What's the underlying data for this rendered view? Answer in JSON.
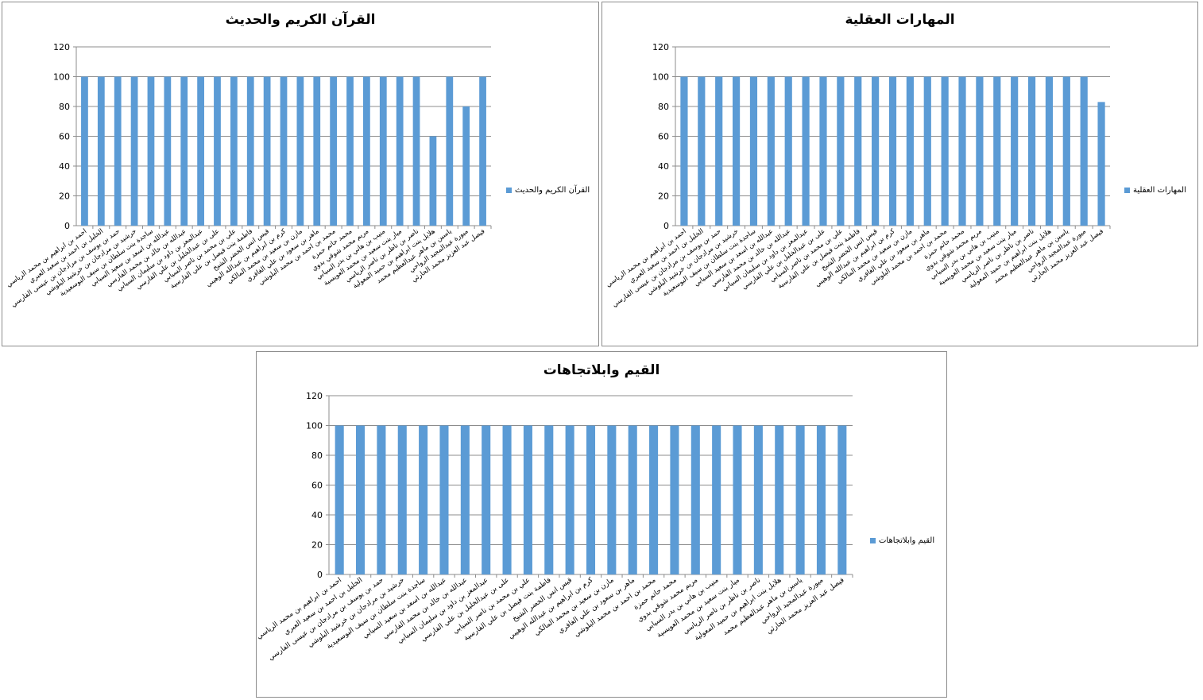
{
  "colors": {
    "bar": "#5b9bd5",
    "grid": "#8c8c8c",
    "axis": "#8c8c8c",
    "frame": "#8c8c8c"
  },
  "chart_data": [
    {
      "type": "bar",
      "title": "القرآن الكريم والحديث",
      "legend": "القرآن الكريم والحديث",
      "legend_position": "right",
      "ylim": [
        0,
        120
      ],
      "yticks": [
        0,
        20,
        40,
        60,
        80,
        100,
        120
      ],
      "grid": true,
      "categories": [
        "احمد بن ابراهيم بن محمد الرياسي",
        "الخليل بن احمد بن سعيد العبري",
        "حمد بن يوسف بن مرادجان بن عيسى الفارسي",
        "خرشيد بن مرادجان بن خرشيد البلوشي",
        "ساجدة بنت سلطان بن سيف البوسعيدية",
        "عبدالله بن اسعد بن سعيد السيابي",
        "عبدالله بن خالد بن محمد الفارسي",
        "عبدالمعز بن داود بن سليمان السيابي",
        "على بن عبدالخليل بن علي الفارسي",
        "علي بن محمد بن ناصر السيابي",
        "فاطمة بنت فيصل بن علي الفارسية",
        "قيس انس الخضر الشيخ",
        "كرم بن ابراهيم بن عبدالله الوهيبي",
        "مازن بن سعيد بن محمد المالكي",
        "ماهر بن سعود بن علي الغافري",
        "محمد بن احمد بن محمد البلوشي",
        "محمد حاتم حمزة",
        "مريم محمد شوقي بدوي",
        "منيب بن هاني بن بدر السيابي",
        "ميار بنت سعيد بن محمد العويسية",
        "ناصر بن ناظر بن ناصر الرياسي",
        "هلايل بنت ابراهيم بن حميد المعولية",
        "ياسين بن ماهر عبدالعظيم محمد",
        "ميورة عبدالمجيد الرواحي",
        "فيصل عبد العزيز محمد الحارثي"
      ],
      "values": [
        100,
        100,
        100,
        100,
        100,
        100,
        100,
        100,
        100,
        100,
        100,
        100,
        100,
        100,
        100,
        100,
        100,
        100,
        100,
        100,
        100,
        60,
        100,
        80,
        100
      ]
    },
    {
      "type": "bar",
      "title": "المهارات العقلية",
      "legend": "المهارات العقلية",
      "legend_position": "right",
      "ylim": [
        0,
        120
      ],
      "yticks": [
        0,
        20,
        40,
        60,
        80,
        100,
        120
      ],
      "grid": true,
      "categories": [
        "احمد بن ابراهيم بن محمد الرياسي",
        "الخليل بن احمد بن سعيد العبري",
        "حمد بن يوسف بن مرادجان بن عيسى الفارسي",
        "خرشيد بن مرادجان بن خرشيد البلوشي",
        "ساجدة بنت سلطان بن سيف البوسعيدية",
        "عبدالله بن اسعد بن سعيد السيابي",
        "عبدالله بن خالد بن محمد الفارسي",
        "عبدالمعز بن داود بن سليمان السيابي",
        "على بن عبدالخليل بن علي الفارسي",
        "علي بن محمد بن ناصر السيابي",
        "فاطمة بنت فيصل بن علي الفارسية",
        "قيس انس الخضر الشيخ",
        "كرم بن ابراهيم بن عبدالله الوهيبي",
        "مازن بن سعيد بن محمد المالكي",
        "ماهر بن سعود بن علي الغافري",
        "محمد بن احمد بن محمد البلوشي",
        "محمد حاتم حمزة",
        "مريم محمد شوقي بدوي",
        "منيب بن هاني بن بدر السيابي",
        "ميار بنت سعيد بن محمد العويسية",
        "ناصر بن ناظر بن ناصر الرياسي",
        "هلايل بنت ابراهيم بن حميد المعولية",
        "ياسين بن ماهر عبدالعظيم محمد",
        "ميورة عبدالمجيد الرواحي",
        "فيصل عبد العزيز محمد الحارثي"
      ],
      "values": [
        100,
        100,
        100,
        100,
        100,
        100,
        100,
        100,
        100,
        100,
        100,
        100,
        100,
        100,
        100,
        100,
        100,
        100,
        100,
        100,
        100,
        100,
        100,
        100,
        83
      ]
    },
    {
      "type": "bar",
      "title": "القيم وابلاتجاهات",
      "legend": "القيم وابلاتجاهات",
      "legend_position": "right",
      "ylim": [
        0,
        120
      ],
      "yticks": [
        0,
        20,
        40,
        60,
        80,
        100,
        120
      ],
      "grid": true,
      "categories": [
        "احمد بن ابراهيم بن محمد الرياسي",
        "الخليل بن احمد بن سعيد العبري",
        "حمد بن يوسف بن مرادجان بن عيسى الفارسي",
        "خرشيد بن مرادجان بن خرشيد البلوشي",
        "ساجدة بنت سلطان بن سيف البوسعيدية",
        "عبدالله بن اسعد بن سعيد السيابي",
        "عبدالله بن خالد بن محمد الفارسي",
        "عبدالمعز بن داود بن سليمان السيابي",
        "على بن عبدالخليل بن علي الفارسي",
        "علي بن محمد بن ناصر السيابي",
        "فاطمة بنت فيصل بن علي الفارسية",
        "قيس انس الخضر الشيخ",
        "كرم بن ابراهيم بن عبدالله الوهيبي",
        "مازن بن سعيد بن محمد المالكي",
        "ماهر بن سعود بن علي الغافري",
        "محمد بن احمد بن محمد البلوشي",
        "محمد حاتم حمزة",
        "مريم محمد شوقي بدوي",
        "منيب بن هاني بن بدر السيابي",
        "ميار بنت سعيد بن محمد العويسية",
        "ناصر بن ناظر بن ناصر الرياسي",
        "هلايل بنت ابراهيم بن حميد المعولية",
        "ياسين بن ماهر عبدالعظيم محمد",
        "ميورة عبدالمجيد الرواحي",
        "فيصل عبد العزيز محمد الحارثي"
      ],
      "values": [
        100,
        100,
        100,
        100,
        100,
        100,
        100,
        100,
        100,
        100,
        100,
        100,
        100,
        100,
        100,
        100,
        100,
        100,
        100,
        100,
        100,
        100,
        100,
        100,
        100
      ]
    }
  ]
}
